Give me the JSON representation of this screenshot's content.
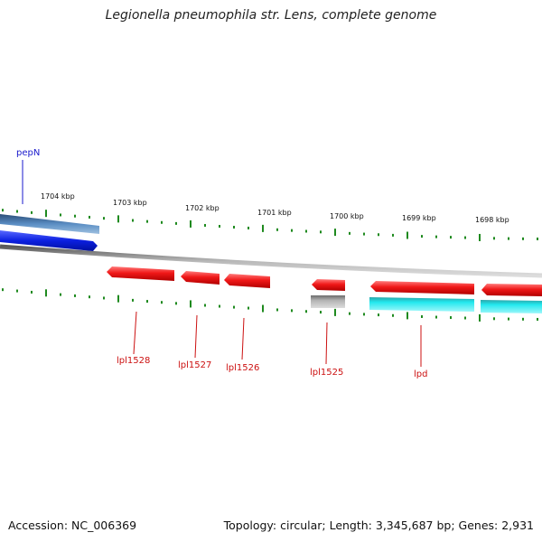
{
  "title": "Legionella pneumophila str. Lens, complete genome",
  "footer": {
    "accession": "Accession: NC_006369",
    "summary": "Topology: circular; Length: 3,345,687 bp; Genes: 2,931"
  },
  "colors": {
    "backbone": "#8a8a8a",
    "tick": "#1f8a1f",
    "forward_gene": "#0b1fe0",
    "forward_gene_shadow": "#4f86c0",
    "reverse_gene": "#f01818",
    "pseudo_gray": "#a8a8a8",
    "cyan": "#22e8ee",
    "label_blue": "#1a1acc",
    "label_red": "#cc1111"
  },
  "scale_labels": [
    "1704 kbp",
    "1703 kbp",
    "1702 kbp",
    "1701 kbp",
    "1700 kbp",
    "1699 kbp",
    "1698 kbp"
  ],
  "gene_labels": [
    "pepN",
    "lpl1528",
    "lpl1527",
    "lpl1526",
    "lpl1525",
    "lpd"
  ]
}
